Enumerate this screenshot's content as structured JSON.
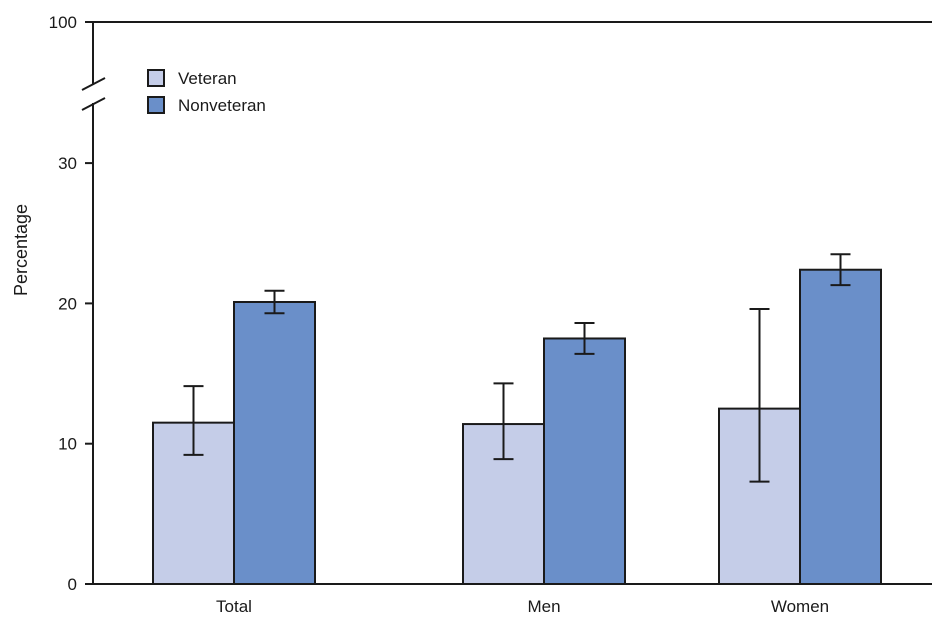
{
  "chart_data": {
    "type": "bar",
    "title": "",
    "xlabel": "",
    "ylabel": "Percentage",
    "ylim": [
      0,
      100
    ],
    "axis_break": {
      "from": 30,
      "to": 100
    },
    "yticks": [
      0,
      10,
      20,
      30,
      100
    ],
    "categories": [
      "Total",
      "Men",
      "Women"
    ],
    "series": [
      {
        "name": "Veteran",
        "color": "#c5cde8",
        "values": [
          11.5,
          11.4,
          12.5
        ],
        "ci_low": [
          9.2,
          8.9,
          7.3
        ],
        "ci_high": [
          14.1,
          14.3,
          19.6
        ]
      },
      {
        "name": "Nonveteran",
        "color": "#6a8fc9",
        "values": [
          20.1,
          17.5,
          22.4
        ],
        "ci_low": [
          19.3,
          16.4,
          21.3
        ],
        "ci_high": [
          20.9,
          18.6,
          23.5
        ]
      }
    ],
    "legend_position": "top-left",
    "grid": false
  }
}
